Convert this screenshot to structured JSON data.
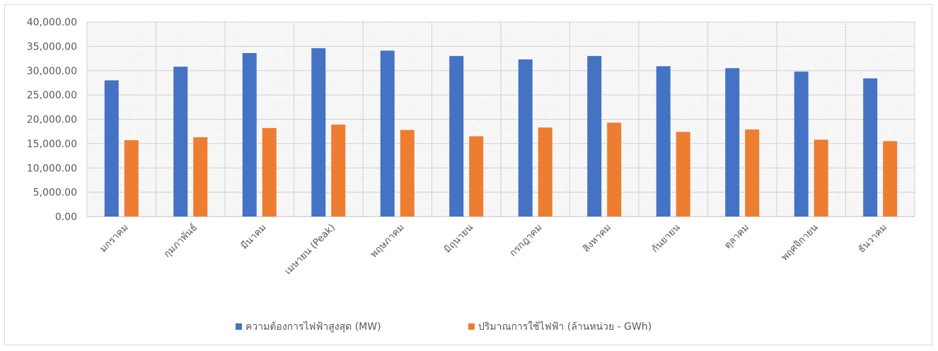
{
  "chart_data": {
    "type": "bar",
    "title": "",
    "xlabel": "",
    "ylabel": "",
    "ylim": [
      0,
      40000
    ],
    "ytick_step": 5000,
    "ytick_labels": [
      "0.00",
      "5,000.00",
      "10,000.00",
      "15,000.00",
      "20,000.00",
      "25,000.00",
      "30,000.00",
      "35,000.00",
      "40,000.00"
    ],
    "grid": true,
    "legend_position": "bottom",
    "categories": [
      "มกราคม",
      "กุมภาพันธ์",
      "มีนาคม",
      "เมษายน (Peak)",
      "พฤษภาคม",
      "มิถุนายน",
      "กรกฎาคม",
      "สิงหาคม",
      "กันยายน",
      "ตุลาคม",
      "พฤศจิกายน",
      "ธันวาคม"
    ],
    "series": [
      {
        "name": "ความต้องการไฟฟ้าสูงสุด (MW)",
        "color": "#4472C4",
        "values": [
          28000,
          30800,
          33600,
          34600,
          34100,
          33000,
          32300,
          33000,
          30900,
          30500,
          29800,
          28400
        ]
      },
      {
        "name": "ปริมาณการใช้ไฟฟ้า (ล้านหน่วย - GWh)",
        "color": "#ED7D31",
        "values": [
          15700,
          16300,
          18200,
          18900,
          17800,
          16500,
          18300,
          19300,
          17400,
          17900,
          15800,
          15500
        ]
      }
    ]
  }
}
